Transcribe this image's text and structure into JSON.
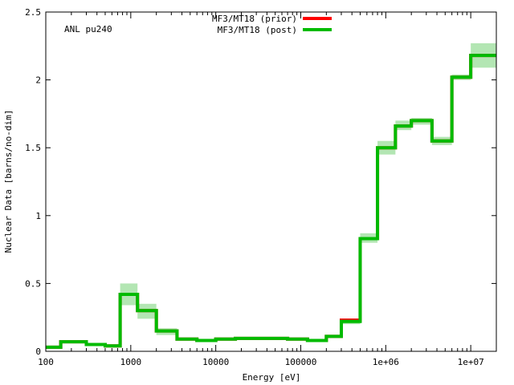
{
  "chart_data": {
    "type": "line",
    "step": true,
    "annotation": "ANL pu240",
    "xlabel": "Energy [eV]",
    "ylabel": "Nuclear Data [barns/no-dim]",
    "xscale": "log",
    "xlim": [
      100,
      20000000
    ],
    "ylim": [
      0,
      2.5
    ],
    "x_ticks": [
      {
        "value": 100,
        "label": "100"
      },
      {
        "value": 1000,
        "label": "1000"
      },
      {
        "value": 10000,
        "label": "10000"
      },
      {
        "value": 100000,
        "label": "100000"
      },
      {
        "value": 1000000,
        "label": "1e+06"
      },
      {
        "value": 10000000,
        "label": "1e+07"
      }
    ],
    "y_ticks": [
      {
        "value": 0,
        "label": "0"
      },
      {
        "value": 0.5,
        "label": "0.5"
      },
      {
        "value": 1,
        "label": "1"
      },
      {
        "value": 1.5,
        "label": "1.5"
      },
      {
        "value": 2,
        "label": "2"
      },
      {
        "value": 2.5,
        "label": "2.5"
      }
    ],
    "bin_edges": [
      100,
      150,
      300,
      500,
      750,
      1200,
      2000,
      3500,
      6000,
      10000,
      17000,
      30000,
      70000,
      120000,
      200000,
      300000,
      500000,
      800000,
      1300000,
      2000000,
      3500000,
      6000000,
      10000000,
      20000000
    ],
    "series": [
      {
        "name": "MF3/MT18 (prior)",
        "color": "#ff0000",
        "values": [
          0.03,
          0.07,
          0.05,
          0.04,
          0.42,
          0.3,
          0.15,
          0.09,
          0.08,
          0.09,
          0.095,
          0.095,
          0.09,
          0.08,
          0.11,
          0.23,
          0.83,
          1.5,
          1.66,
          1.7,
          1.55,
          2.02,
          2.18
        ]
      },
      {
        "name": "MF3/MT18 (post)",
        "color": "#00bb00",
        "values": [
          0.03,
          0.07,
          0.05,
          0.04,
          0.42,
          0.3,
          0.15,
          0.09,
          0.08,
          0.09,
          0.095,
          0.095,
          0.09,
          0.08,
          0.11,
          0.22,
          0.83,
          1.5,
          1.66,
          1.7,
          1.55,
          2.02,
          2.18
        ]
      }
    ],
    "uncertainty_band": {
      "color": "#b3e6b3",
      "lower": [
        0.02,
        0.06,
        0.04,
        0.03,
        0.34,
        0.24,
        0.12,
        0.08,
        0.07,
        0.085,
        0.09,
        0.09,
        0.085,
        0.075,
        0.1,
        0.2,
        0.8,
        1.45,
        1.63,
        1.67,
        1.52,
        2.0,
        2.09
      ],
      "upper": [
        0.04,
        0.08,
        0.06,
        0.05,
        0.5,
        0.35,
        0.17,
        0.1,
        0.09,
        0.1,
        0.1,
        0.1,
        0.095,
        0.085,
        0.12,
        0.24,
        0.87,
        1.55,
        1.7,
        1.72,
        1.58,
        2.04,
        2.27
      ]
    },
    "legend_position": "top-center",
    "grid": false
  }
}
